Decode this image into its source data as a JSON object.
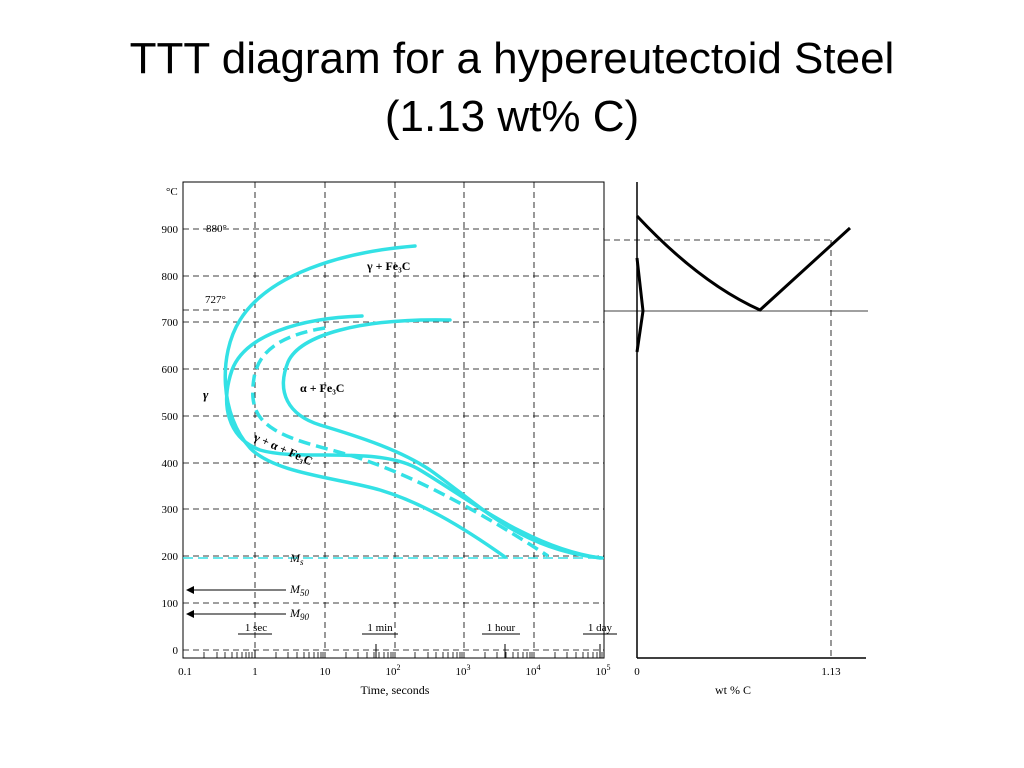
{
  "slide": {
    "title_line1": "TTT diagram for a hypereutectoid Steel",
    "title_line2": "(1.13 wt% C)"
  },
  "ttt": {
    "y_unit": "°C",
    "y_ticks": [
      "0",
      "100",
      "200",
      "300",
      "400",
      "500",
      "600",
      "700",
      "800",
      "900"
    ],
    "x_ticks": [
      "0.1",
      "1",
      "10",
      "10",
      "10",
      "10",
      "10"
    ],
    "x_tick_exponents": [
      "",
      "",
      "",
      "2",
      "3",
      "4",
      "5"
    ],
    "xlabel": "Time, seconds",
    "ref_880": "880°",
    "ref_727": "727°",
    "time_markers": [
      "1 sec",
      "1 min",
      "1 hour",
      "1 day"
    ],
    "phase_gamma": "γ",
    "phase_gamma_fe3c": "γ + Fe₃C",
    "phase_alpha_fe3c": "α + Fe₃C",
    "phase_mixed": "γ + α + Fe₃C",
    "ms_label": "M",
    "ms_sub": "s",
    "m50_label": "M",
    "m50_sub": "50",
    "m90_label": "M",
    "m90_sub": "90",
    "curve_color": "#33e1e5"
  },
  "phase_diagram": {
    "x_ticks": [
      "0",
      "1.13"
    ],
    "xlabel": "wt % C"
  }
}
